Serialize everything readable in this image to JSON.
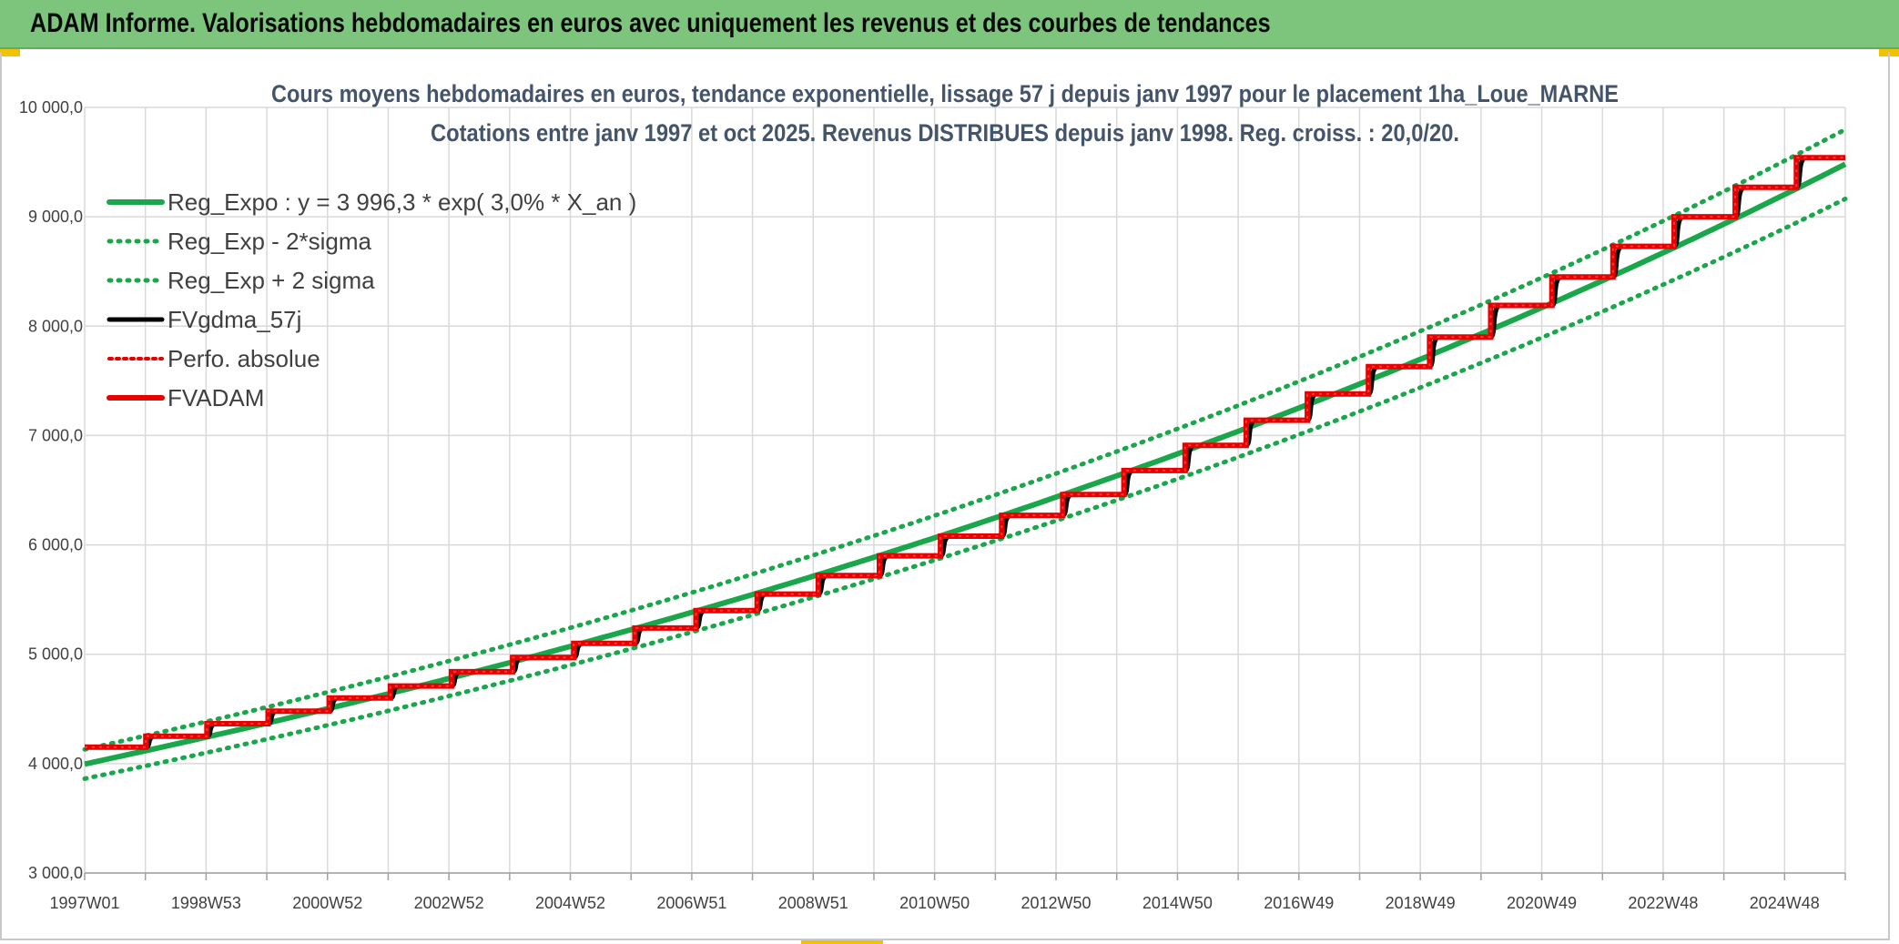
{
  "header": {
    "banner_title": "ADAM Informe. Valorisations hebdomadaires en euros avec uniquement les revenus et des courbes de tendances"
  },
  "colors": {
    "banner_bg": "#7dc57d",
    "reg_expo": "#1aa64b",
    "sigma_bands": "#1aa64b",
    "fvgdma": "#000000",
    "perfo": "#e60000",
    "fvadam": "#e60000",
    "grid": "#d9d9d9"
  },
  "chart_data": {
    "type": "line",
    "title": [
      "Cours moyens hebdomadaires en euros, tendance exponentielle, lissage 57 j depuis janv 1997 pour le placement 1ha_Loue_MARNE",
      "Cotations entre janv 1997 et oct 2025. Revenus DISTRIBUES depuis janv 1998. Reg. croiss. : 20,0/20."
    ],
    "xlabel": "",
    "ylabel": "",
    "ylim": [
      3000,
      10000
    ],
    "y_ticks": [
      3000,
      4000,
      5000,
      6000,
      7000,
      8000,
      9000,
      10000
    ],
    "y_tick_labels": [
      "3 000,0",
      "4 000,0",
      "5 000,0",
      "6 000,0",
      "7 000,0",
      "8 000,0",
      "9 000,0",
      "10 000,0"
    ],
    "x_range_years": [
      1997.0,
      2025.8
    ],
    "x_tick_labels": [
      "1997W01",
      "1998W53",
      "2000W52",
      "2002W52",
      "2004W52",
      "2006W51",
      "2008W51",
      "2010W50",
      "2012W50",
      "2014W50",
      "2016W49",
      "2018W49",
      "2020W49",
      "2022W48",
      "2024W48"
    ],
    "grid": true,
    "legend_position": "top-left",
    "series": [
      {
        "name": "Reg_Expo : y = 3 996,3 * exp( 3,0% *  X_an )",
        "style": "solid-thick",
        "formula": {
          "a": 3996.3,
          "rate": 0.03,
          "x0": 1997.0
        }
      },
      {
        "name": "Reg_Exp - 2*sigma",
        "style": "dotted",
        "formula": {
          "a": 3862.0,
          "rate": 0.03,
          "x0": 1997.0
        }
      },
      {
        "name": "Reg_Exp + 2 sigma",
        "style": "dotted",
        "formula": {
          "a": 4130.0,
          "rate": 0.03,
          "x0": 1997.0
        }
      },
      {
        "name": "FVgdma_57j",
        "style": "solid"
      },
      {
        "name": "Perfo. absolue",
        "style": "dotted"
      },
      {
        "name": "FVADAM",
        "style": "solid-thick"
      }
    ],
    "fvadam_steps": [
      {
        "from": 1997.0,
        "to": 1998.0,
        "value": 4150
      },
      {
        "from": 1998.0,
        "to": 1999.0,
        "value": 4250
      },
      {
        "from": 1999.0,
        "to": 2000.0,
        "value": 4365
      },
      {
        "from": 2000.0,
        "to": 2001.0,
        "value": 4480
      },
      {
        "from": 2001.0,
        "to": 2002.0,
        "value": 4600
      },
      {
        "from": 2002.0,
        "to": 2003.0,
        "value": 4710
      },
      {
        "from": 2003.0,
        "to": 2004.0,
        "value": 4840
      },
      {
        "from": 2004.0,
        "to": 2005.0,
        "value": 4970
      },
      {
        "from": 2005.0,
        "to": 2006.0,
        "value": 5100
      },
      {
        "from": 2006.0,
        "to": 2007.0,
        "value": 5240
      },
      {
        "from": 2007.0,
        "to": 2008.0,
        "value": 5400
      },
      {
        "from": 2008.0,
        "to": 2009.0,
        "value": 5550
      },
      {
        "from": 2009.0,
        "to": 2010.0,
        "value": 5720
      },
      {
        "from": 2010.0,
        "to": 2011.0,
        "value": 5900
      },
      {
        "from": 2011.0,
        "to": 2012.0,
        "value": 6080
      },
      {
        "from": 2012.0,
        "to": 2013.0,
        "value": 6270
      },
      {
        "from": 2013.0,
        "to": 2014.0,
        "value": 6460
      },
      {
        "from": 2014.0,
        "to": 2015.0,
        "value": 6680
      },
      {
        "from": 2015.0,
        "to": 2016.0,
        "value": 6910
      },
      {
        "from": 2016.0,
        "to": 2017.0,
        "value": 7140
      },
      {
        "from": 2017.0,
        "to": 2018.0,
        "value": 7380
      },
      {
        "from": 2018.0,
        "to": 2019.0,
        "value": 7630
      },
      {
        "from": 2019.0,
        "to": 2020.0,
        "value": 7900
      },
      {
        "from": 2020.0,
        "to": 2021.0,
        "value": 8190
      },
      {
        "from": 2021.0,
        "to": 2022.0,
        "value": 8450
      },
      {
        "from": 2022.0,
        "to": 2023.0,
        "value": 8730
      },
      {
        "from": 2023.0,
        "to": 2024.0,
        "value": 9000
      },
      {
        "from": 2024.0,
        "to": 2025.0,
        "value": 9270
      },
      {
        "from": 2025.0,
        "to": 2025.8,
        "value": 9540
      }
    ]
  }
}
